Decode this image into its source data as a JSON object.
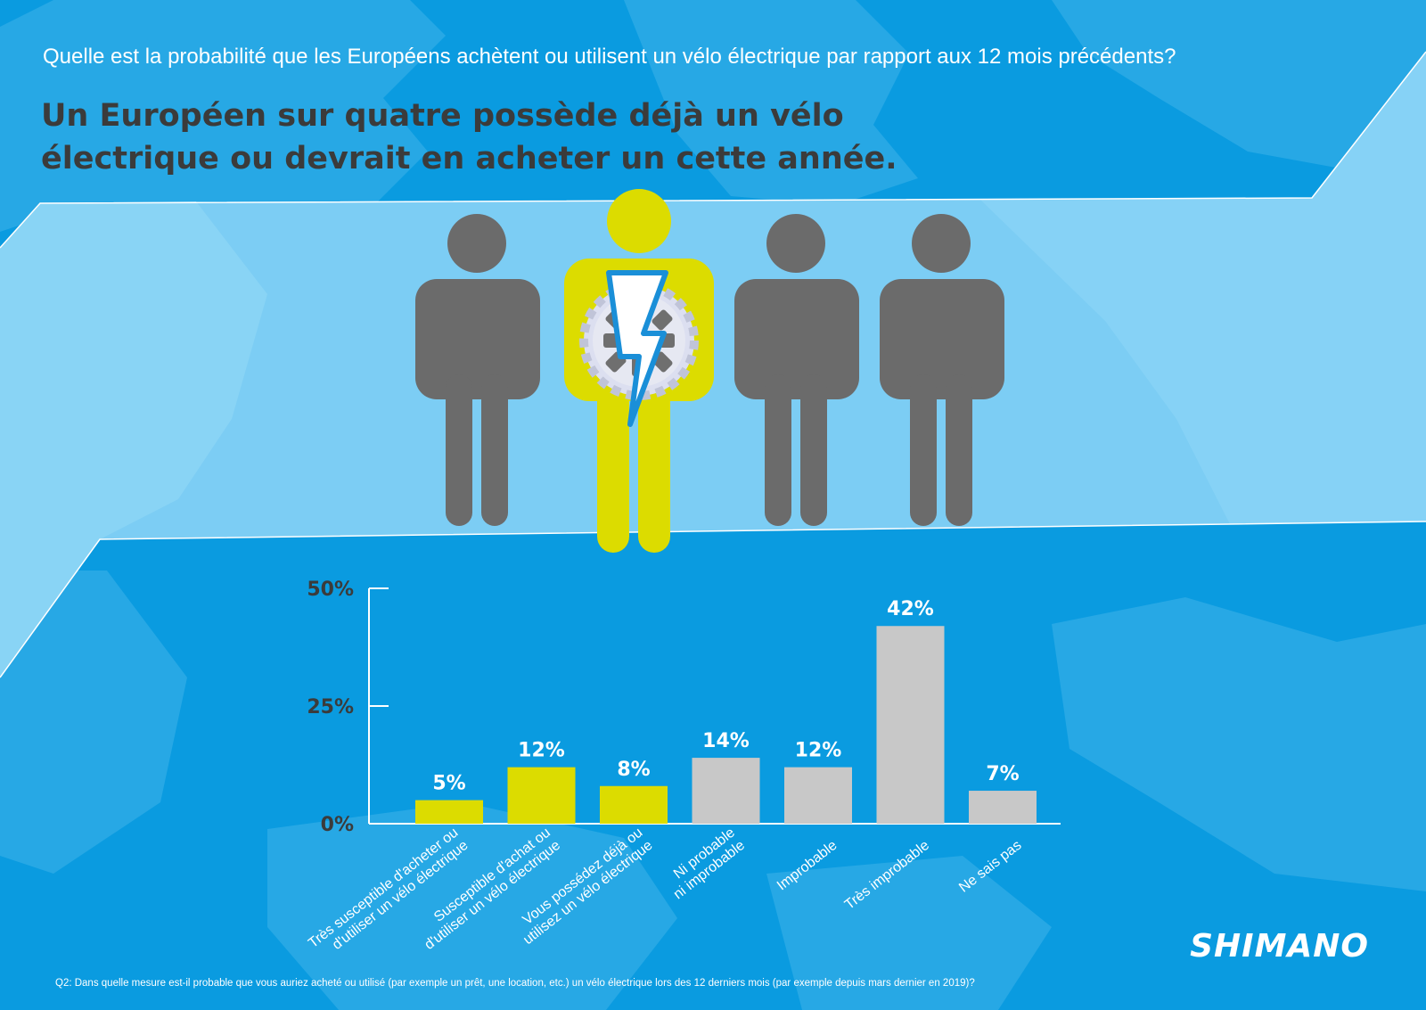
{
  "question": "Quelle est la probabilité que les Européens achètent ou utilisent un vélo électrique par rapport aux 12 mois précédents?",
  "headline": {
    "line1": "Un Européen sur quatre possède déjà un vélo",
    "line2": "électrique ou devrait en acheter un cette année."
  },
  "footnote": "Q2: Dans quelle mesure est-il probable que vous auriez acheté ou utilisé (par exemple un prêt, une location, etc.) un vélo électrique lors des 12 derniers mois (par exemple depuis mars dernier en 2019)?",
  "brand": "SHIMANO",
  "illustration": {
    "figures": [
      "gray",
      "yellow-ebike",
      "gray",
      "gray"
    ],
    "icons": [
      "person-icon",
      "ebike-person-icon",
      "gear-icon",
      "lightning-icon"
    ]
  },
  "colors": {
    "background": "#0a9be0",
    "band": "#7ccdf4",
    "yellow": "#dcdc00",
    "gray": "#c8c8c8",
    "figure_gray": "#6b6b6b",
    "text_dark": "#3b3b3b",
    "white": "#ffffff"
  },
  "chart_data": {
    "type": "bar",
    "categories": [
      [
        "Très susceptible d'acheter ou",
        "d'utiliser un vélo électrique"
      ],
      [
        "Susceptible d'achat ou",
        "d'utiliser un vélo électrique"
      ],
      [
        "Vous possédez déjà ou",
        "utilisez un vélo électrique"
      ],
      [
        "Ni probable",
        "ni improbable"
      ],
      [
        "Improbable"
      ],
      [
        "Très improbable"
      ],
      [
        "Ne sais pas"
      ]
    ],
    "values": [
      5,
      12,
      8,
      14,
      12,
      42,
      7
    ],
    "value_labels": [
      "5%",
      "12%",
      "8%",
      "14%",
      "12%",
      "42%",
      "7%"
    ],
    "bar_colors": [
      "yellow",
      "yellow",
      "yellow",
      "gray",
      "gray",
      "gray",
      "gray"
    ],
    "ylim": [
      0,
      50
    ],
    "yticks": [
      0,
      25,
      50
    ],
    "ytick_labels": [
      "0%",
      "25%",
      "50%"
    ],
    "grid": false,
    "legend": "none"
  }
}
